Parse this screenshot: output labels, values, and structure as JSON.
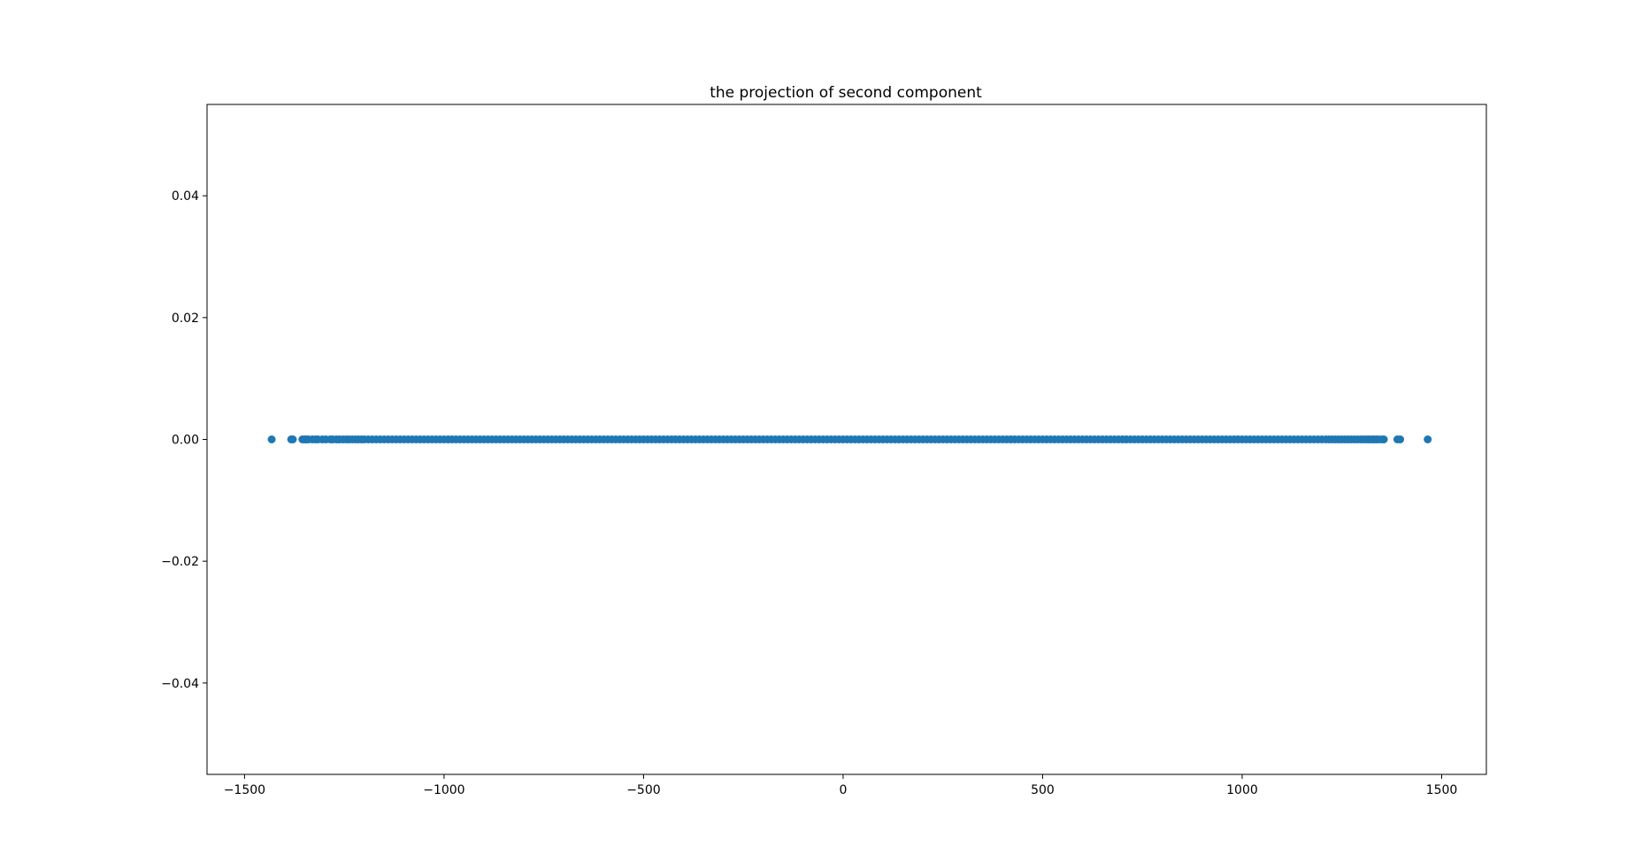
{
  "chart_data": {
    "type": "scatter",
    "title": "the projection of second component",
    "xlabel": "",
    "ylabel": "",
    "xlim": [
      -1594,
      1612
    ],
    "ylim": [
      -0.055,
      0.055
    ],
    "x_ticks": [
      -1500,
      -1000,
      -500,
      0,
      500,
      1000,
      1500
    ],
    "x_tick_labels": [
      "−1500",
      "−1000",
      "−500",
      "0",
      "500",
      "1000",
      "1500"
    ],
    "y_ticks": [
      0.04,
      0.02,
      0.0,
      -0.02,
      -0.04
    ],
    "y_tick_labels": [
      "0.04",
      "0.02",
      "0.00",
      "−0.02",
      "−0.04"
    ],
    "grid": false,
    "series": [
      {
        "color": "#1f77b4",
        "y": 0.0,
        "x": [
          -1432,
          -1383,
          -1379,
          -1355,
          -1349,
          -1345,
          -1340,
          -1330,
          -1322,
          -1316,
          -1305,
          -1296,
          -1285,
          -1279,
          -1270,
          -1262,
          -1253,
          -1245,
          -1238,
          -1230,
          -1222,
          -1215,
          -1207,
          -1200,
          -1190,
          -1180,
          -1170,
          -1160,
          -1150,
          -1140,
          -1130,
          -1120,
          -1110,
          -1100,
          -1090,
          -1080,
          -1070,
          -1060,
          -1050,
          -1040,
          -1030,
          -1020,
          -1010,
          -1000,
          -990,
          -980,
          -970,
          -960,
          -950,
          -940,
          -930,
          -920,
          -910,
          -900,
          -890,
          -880,
          -870,
          -860,
          -850,
          -840,
          -830,
          -820,
          -810,
          -800,
          -790,
          -780,
          -770,
          -760,
          -750,
          -740,
          -730,
          -720,
          -710,
          -700,
          -690,
          -680,
          -670,
          -660,
          -650,
          -640,
          -630,
          -620,
          -610,
          -600,
          -590,
          -580,
          -570,
          -560,
          -550,
          -540,
          -530,
          -520,
          -510,
          -500,
          -490,
          -480,
          -470,
          -460,
          -450,
          -440,
          -430,
          -420,
          -410,
          -400,
          -390,
          -380,
          -370,
          -360,
          -350,
          -340,
          -330,
          -320,
          -310,
          -300,
          -290,
          -280,
          -270,
          -260,
          -250,
          -240,
          -230,
          -220,
          -210,
          -200,
          -190,
          -180,
          -170,
          -160,
          -150,
          -140,
          -130,
          -120,
          -110,
          -100,
          -90,
          -80,
          -70,
          -60,
          -50,
          -40,
          -30,
          -20,
          -10,
          0,
          10,
          20,
          30,
          40,
          50,
          60,
          70,
          80,
          90,
          100,
          110,
          120,
          130,
          140,
          150,
          160,
          170,
          180,
          190,
          200,
          210,
          220,
          230,
          240,
          250,
          260,
          270,
          280,
          290,
          300,
          310,
          320,
          330,
          340,
          350,
          360,
          370,
          380,
          390,
          400,
          410,
          420,
          430,
          440,
          450,
          460,
          470,
          480,
          490,
          500,
          510,
          520,
          530,
          540,
          550,
          560,
          570,
          580,
          590,
          600,
          610,
          620,
          630,
          640,
          650,
          660,
          670,
          680,
          690,
          700,
          710,
          720,
          730,
          740,
          750,
          760,
          770,
          780,
          790,
          800,
          810,
          820,
          830,
          840,
          850,
          860,
          870,
          880,
          890,
          900,
          910,
          920,
          930,
          940,
          950,
          960,
          970,
          980,
          990,
          1000,
          1010,
          1020,
          1030,
          1040,
          1050,
          1060,
          1070,
          1080,
          1090,
          1100,
          1110,
          1120,
          1130,
          1140,
          1150,
          1160,
          1170,
          1180,
          1190,
          1200,
          1210,
          1218,
          1226,
          1234,
          1242,
          1250,
          1258,
          1266,
          1274,
          1282,
          1290,
          1298,
          1305,
          1312,
          1318,
          1325,
          1330,
          1336,
          1342,
          1350,
          1355,
          1389,
          1396,
          1465
        ]
      }
    ]
  }
}
